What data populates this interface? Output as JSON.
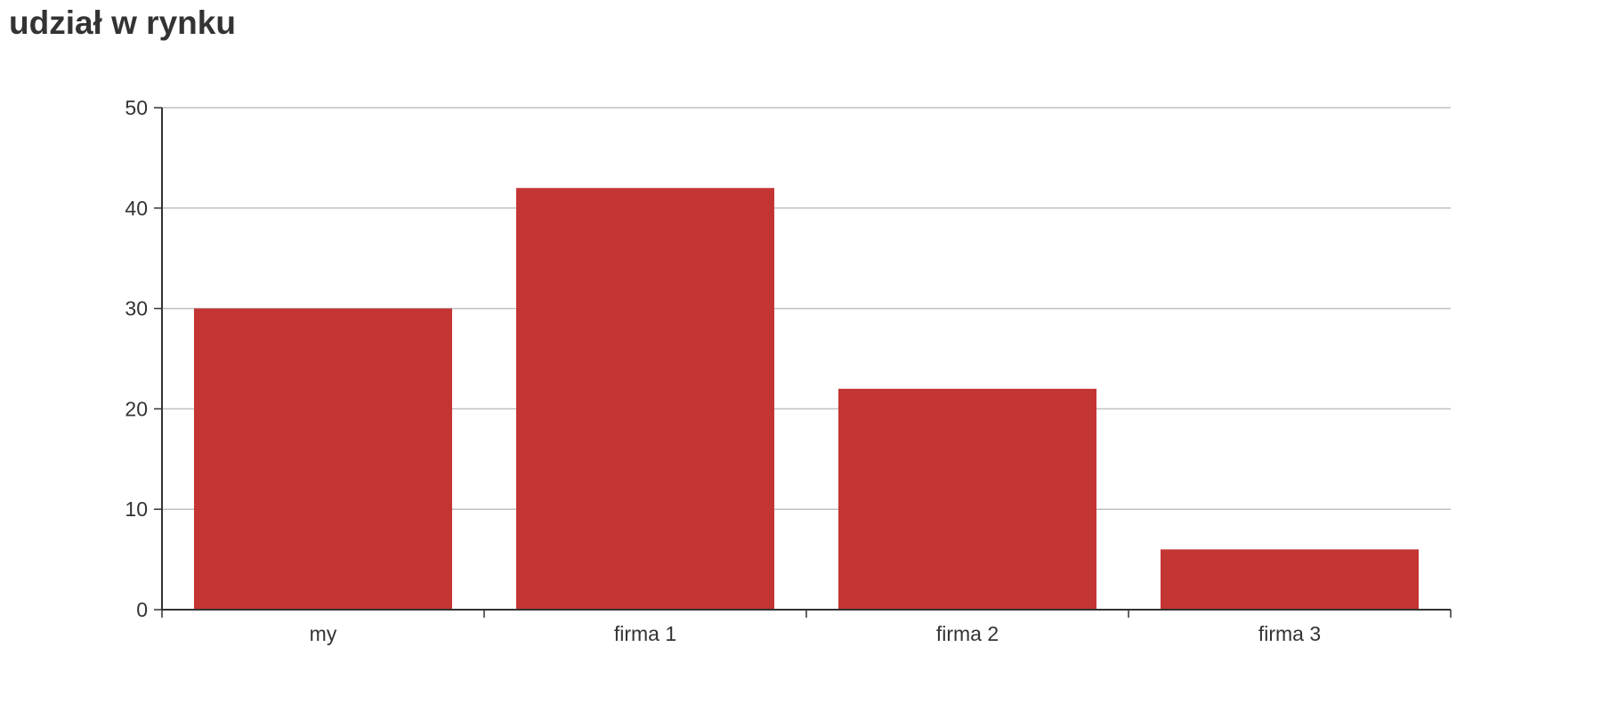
{
  "chart_data": {
    "type": "bar",
    "title": "udział w rynku",
    "categories": [
      "my",
      "firma 1",
      "firma 2",
      "firma 3"
    ],
    "values": [
      30,
      42,
      22,
      6
    ],
    "ylim": [
      0,
      50
    ],
    "yticks": [
      0,
      10,
      20,
      30,
      40,
      50
    ],
    "xlabel": "",
    "ylabel": "",
    "grid": true,
    "legend": "none",
    "bar_color": "#c33533",
    "grid_color": "#c0c0c0",
    "axis_color": "#333333"
  }
}
